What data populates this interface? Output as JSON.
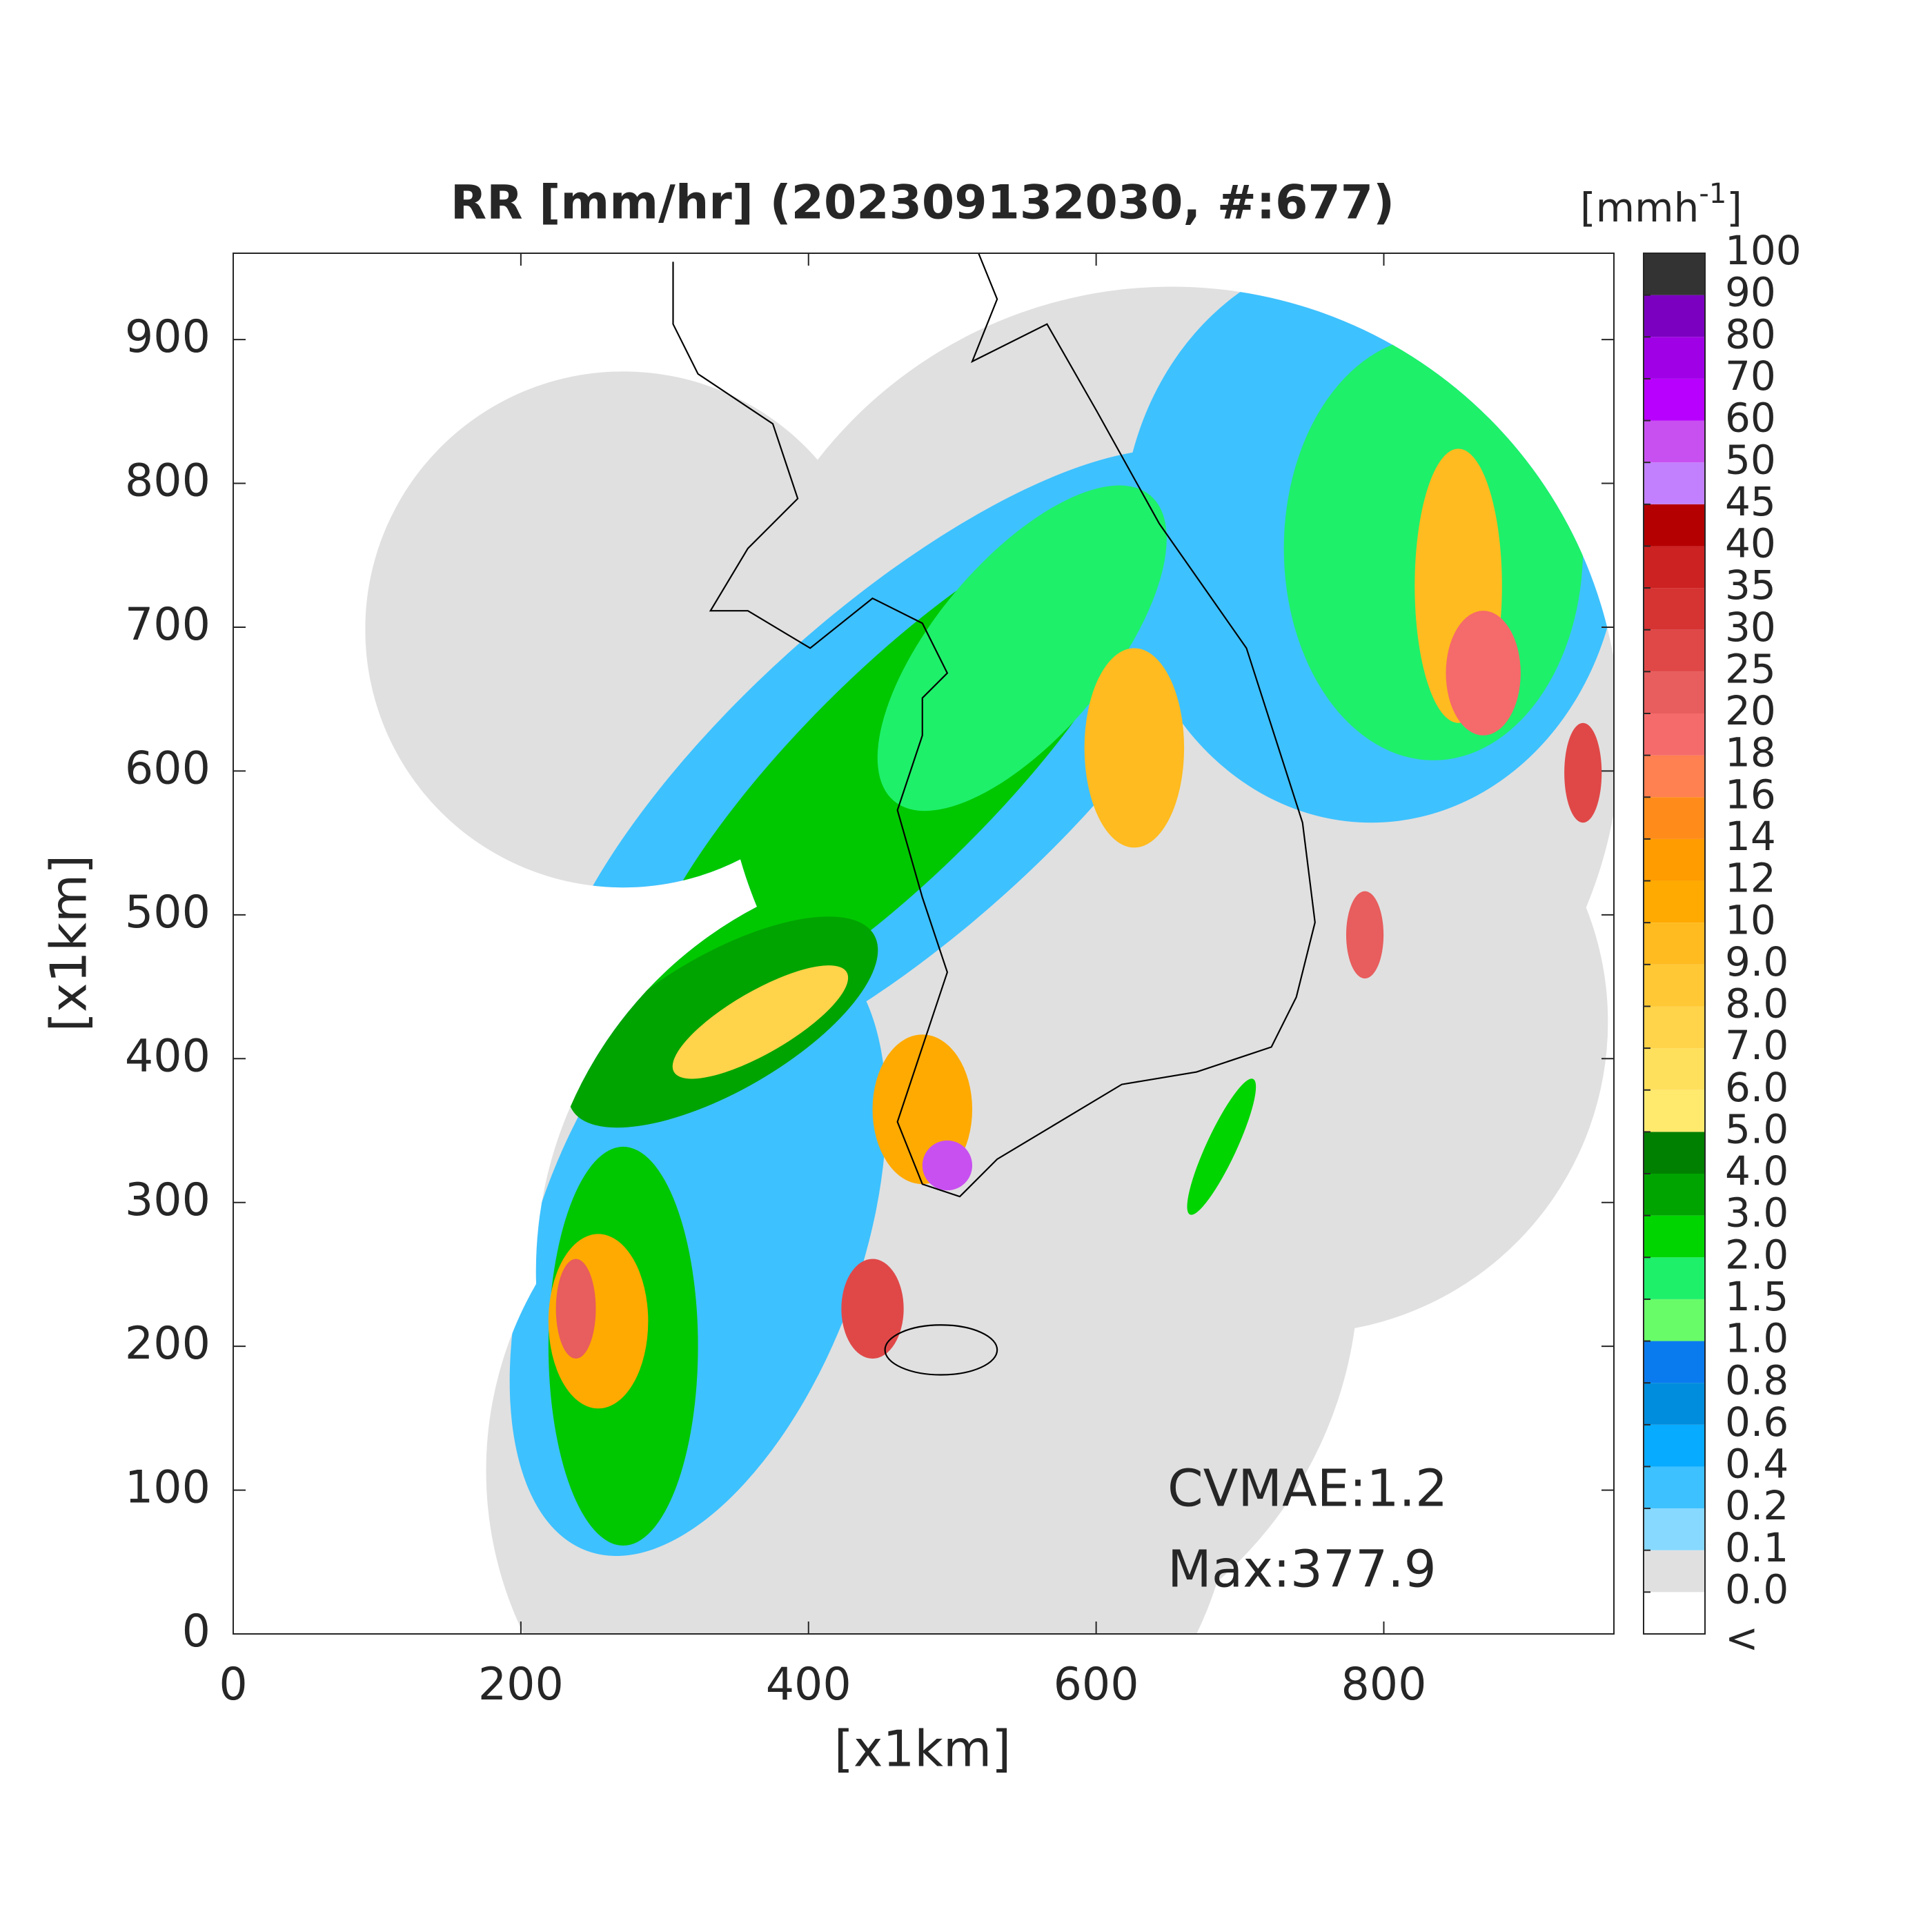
{
  "chart_data": {
    "type": "radar-map",
    "title": "RR [mm/hr] (202309132030, #:677)",
    "xlabel": "[x1km]",
    "ylabel": "[x1km]",
    "xlim": [
      0,
      960
    ],
    "ylim": [
      0,
      960
    ],
    "xticks": [
      0,
      200,
      400,
      600,
      800
    ],
    "yticks": [
      0,
      100,
      200,
      300,
      400,
      500,
      600,
      700,
      800,
      900
    ],
    "colorbar": {
      "unit": {
        "open": "[mmh",
        "sup": "-1",
        "close": "]"
      },
      "below_label": "<",
      "ticks": [
        {
          "value": 0,
          "label": "0.0"
        },
        0.1,
        0.2,
        0.4,
        0.6,
        0.8,
        {
          "value": 1,
          "label": "1.0"
        },
        1.5,
        {
          "value": 2,
          "label": "2.0"
        },
        {
          "value": 3,
          "label": "3.0"
        },
        {
          "value": 4,
          "label": "4.0"
        },
        {
          "value": 5,
          "label": "5.0"
        },
        {
          "value": 6,
          "label": "6.0"
        },
        {
          "value": 7,
          "label": "7.0"
        },
        {
          "value": 8,
          "label": "8.0"
        },
        {
          "value": 9,
          "label": "9.0"
        },
        10,
        12,
        14,
        16,
        18,
        20,
        25,
        30,
        35,
        40,
        45,
        50,
        60,
        70,
        80,
        90,
        100
      ],
      "colors": [
        "#ffffff",
        "#e0e0e0",
        "#87d9ff",
        "#3ec1ff",
        "#07abff",
        "#008dde",
        "#0a7bef",
        "#69fc69",
        "#1ef06a",
        "#00d500",
        "#00a400",
        "#008000",
        "#ffea6e",
        "#ffe05c",
        "#ffd34a",
        "#ffc834",
        "#ffbb1f",
        "#ffaa00",
        "#ff9c00",
        "#ff8c1a",
        "#ff8050",
        "#f56a6a",
        "#e85d5d",
        "#e04848",
        "#d63333",
        "#cc2222",
        "#b40000",
        "#c280ff",
        "#c850f0",
        "#b800ff",
        "#a000e6",
        "#7b00c0",
        "#333333"
      ]
    },
    "annotations": [
      "CVMAE:1.2",
      "Max:377.9"
    ]
  }
}
